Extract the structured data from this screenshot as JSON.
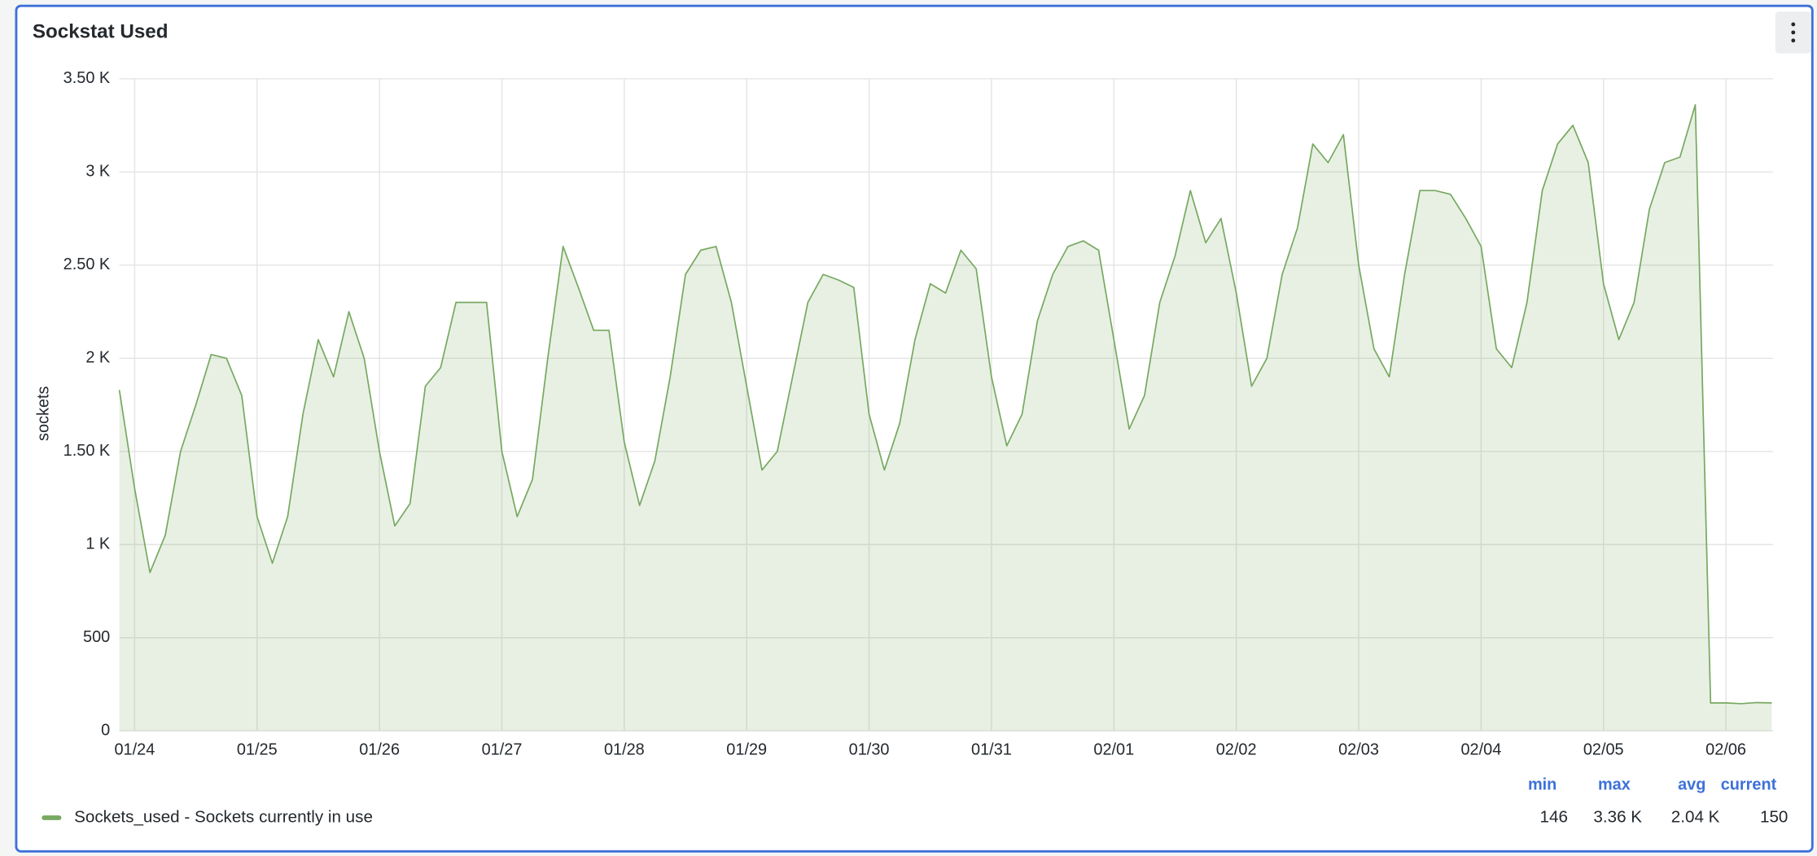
{
  "chart_data": {
    "type": "line",
    "title": "Sockstat Used",
    "y_label": "sockets",
    "categories": [
      null,
      "01/24",
      null,
      null,
      null,
      null,
      null,
      null,
      null,
      "01/25",
      null,
      null,
      null,
      null,
      null,
      null,
      null,
      "01/26",
      null,
      null,
      null,
      null,
      null,
      null,
      null,
      "01/27",
      null,
      null,
      null,
      null,
      null,
      null,
      null,
      "01/28",
      null,
      null,
      null,
      null,
      null,
      null,
      null,
      "01/29",
      null,
      null,
      null,
      null,
      null,
      null,
      null,
      "01/30",
      null,
      null,
      null,
      null,
      null,
      null,
      null,
      "01/31",
      null,
      null,
      null,
      null,
      null,
      null,
      null,
      "02/01",
      null,
      null,
      null,
      null,
      null,
      null,
      null,
      "02/02",
      null,
      null,
      null,
      null,
      null,
      null,
      null,
      "02/03",
      null,
      null,
      null,
      null,
      null,
      null,
      null,
      "02/04",
      null,
      null,
      null,
      null,
      null,
      null,
      null,
      "02/05",
      null,
      null,
      null,
      null,
      null,
      null,
      null,
      "02/06",
      null,
      null,
      null
    ],
    "series": [
      {
        "name": "Sockets_used - Sockets currently in use",
        "color": "#77a960",
        "values": [
          1830,
          1300,
          850,
          1050,
          1500,
          1750,
          2020,
          2000,
          1800,
          1150,
          900,
          1150,
          1700,
          2100,
          1900,
          2250,
          2000,
          1500,
          1100,
          1220,
          1850,
          1950,
          2300,
          2300,
          2300,
          1500,
          1150,
          1350,
          2000,
          2600,
          2380,
          2150,
          2150,
          1550,
          1210,
          1450,
          1900,
          2450,
          2580,
          2600,
          2300,
          1850,
          1400,
          1500,
          1900,
          2300,
          2450,
          2420,
          2380,
          1700,
          1400,
          1650,
          2100,
          2400,
          2350,
          2580,
          2480,
          1900,
          1530,
          1700,
          2200,
          2450,
          2600,
          2630,
          2580,
          2100,
          1620,
          1800,
          2300,
          2550,
          2900,
          2620,
          2750,
          2350,
          1850,
          2000,
          2450,
          2700,
          3150,
          3050,
          3200,
          2500,
          2050,
          1900,
          2450,
          2900,
          2900,
          2880,
          2750,
          2600,
          2050,
          1950,
          2300,
          2900,
          3150,
          3250,
          3050,
          2400,
          2100,
          2300,
          2800,
          3050,
          3080,
          3360,
          150,
          150,
          146,
          152,
          150
        ]
      }
    ],
    "ylim": [
      0,
      3500
    ],
    "yticks": [
      0,
      500,
      {
        "value": 1000,
        "label": "1 K"
      },
      {
        "value": 1500,
        "label": "1.50 K"
      },
      {
        "value": 2000,
        "label": "2 K"
      },
      {
        "value": 2500,
        "label": "2.50 K"
      },
      {
        "value": 3000,
        "label": "3 K"
      },
      {
        "value": 3500,
        "label": "3.50 K"
      }
    ],
    "grid": true,
    "legend_stats": {
      "columns": [
        "min",
        "max",
        "avg",
        "current"
      ],
      "values": [
        "146",
        "3.36 K",
        "2.04 K",
        "150"
      ]
    }
  }
}
